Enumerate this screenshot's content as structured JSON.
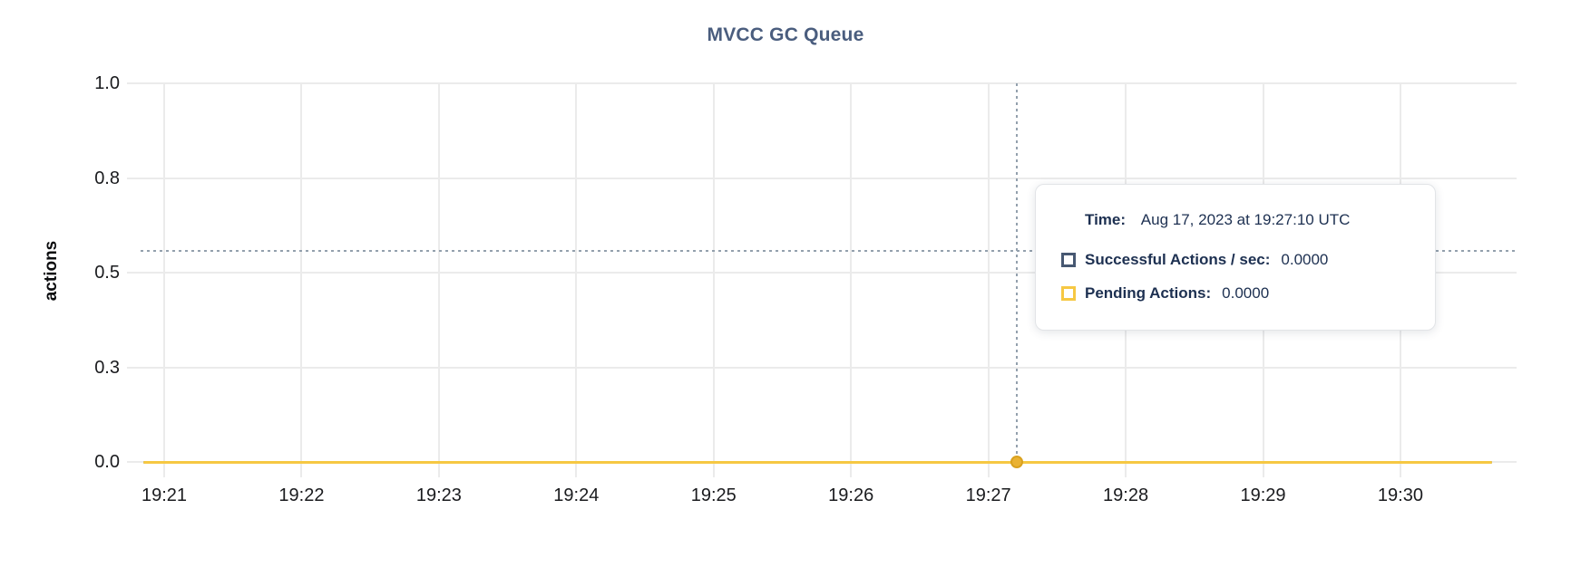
{
  "chart_data": {
    "type": "line",
    "title": "MVCC GC Queue",
    "xlabel": "",
    "ylabel": "actions",
    "x_tick_labels": [
      "19:21",
      "19:22",
      "19:23",
      "19:24",
      "19:25",
      "19:26",
      "19:27",
      "19:28",
      "19:29",
      "19:30"
    ],
    "y_tick_labels": [
      "1.0",
      "0.8",
      "0.5",
      "0.3",
      "0.0"
    ],
    "y_tick_values": [
      1.0,
      0.75,
      0.5,
      0.25,
      0.0
    ],
    "ylim": [
      0,
      1
    ],
    "grid": true,
    "legend_position": "tooltip",
    "series": [
      {
        "name": "Successful Actions / sec",
        "color": "#475872",
        "values": [
          0,
          0,
          0,
          0,
          0,
          0,
          0,
          0,
          0,
          0
        ]
      },
      {
        "name": "Pending Actions",
        "color": "#f6c843",
        "values": [
          0,
          0,
          0,
          0,
          0,
          0,
          0,
          0,
          0,
          0
        ]
      }
    ],
    "crosshair": {
      "time": "19:27:10",
      "x_frac": 0.637,
      "y_frac": 0.443
    },
    "hover_point": {
      "x_frac": 0.637,
      "value": 0
    }
  },
  "tooltip": {
    "time_label": "Time:",
    "time_value": "Aug 17, 2023 at 19:27:10 UTC",
    "rows": [
      {
        "label": "Successful Actions / sec:",
        "value": "0.0000",
        "color": "#475872"
      },
      {
        "label": "Pending Actions:",
        "value": "0.0000",
        "color": "#f6c843"
      }
    ]
  },
  "colors": {
    "title": "#4a5d7e",
    "axis_text": "#1a1b1e",
    "grid": "#ebebeb",
    "crosshair": "#93a0ad",
    "dot_fill": "#eab233",
    "dot_stroke": "#d9a11f",
    "tooltip_text": "#1d3051"
  }
}
